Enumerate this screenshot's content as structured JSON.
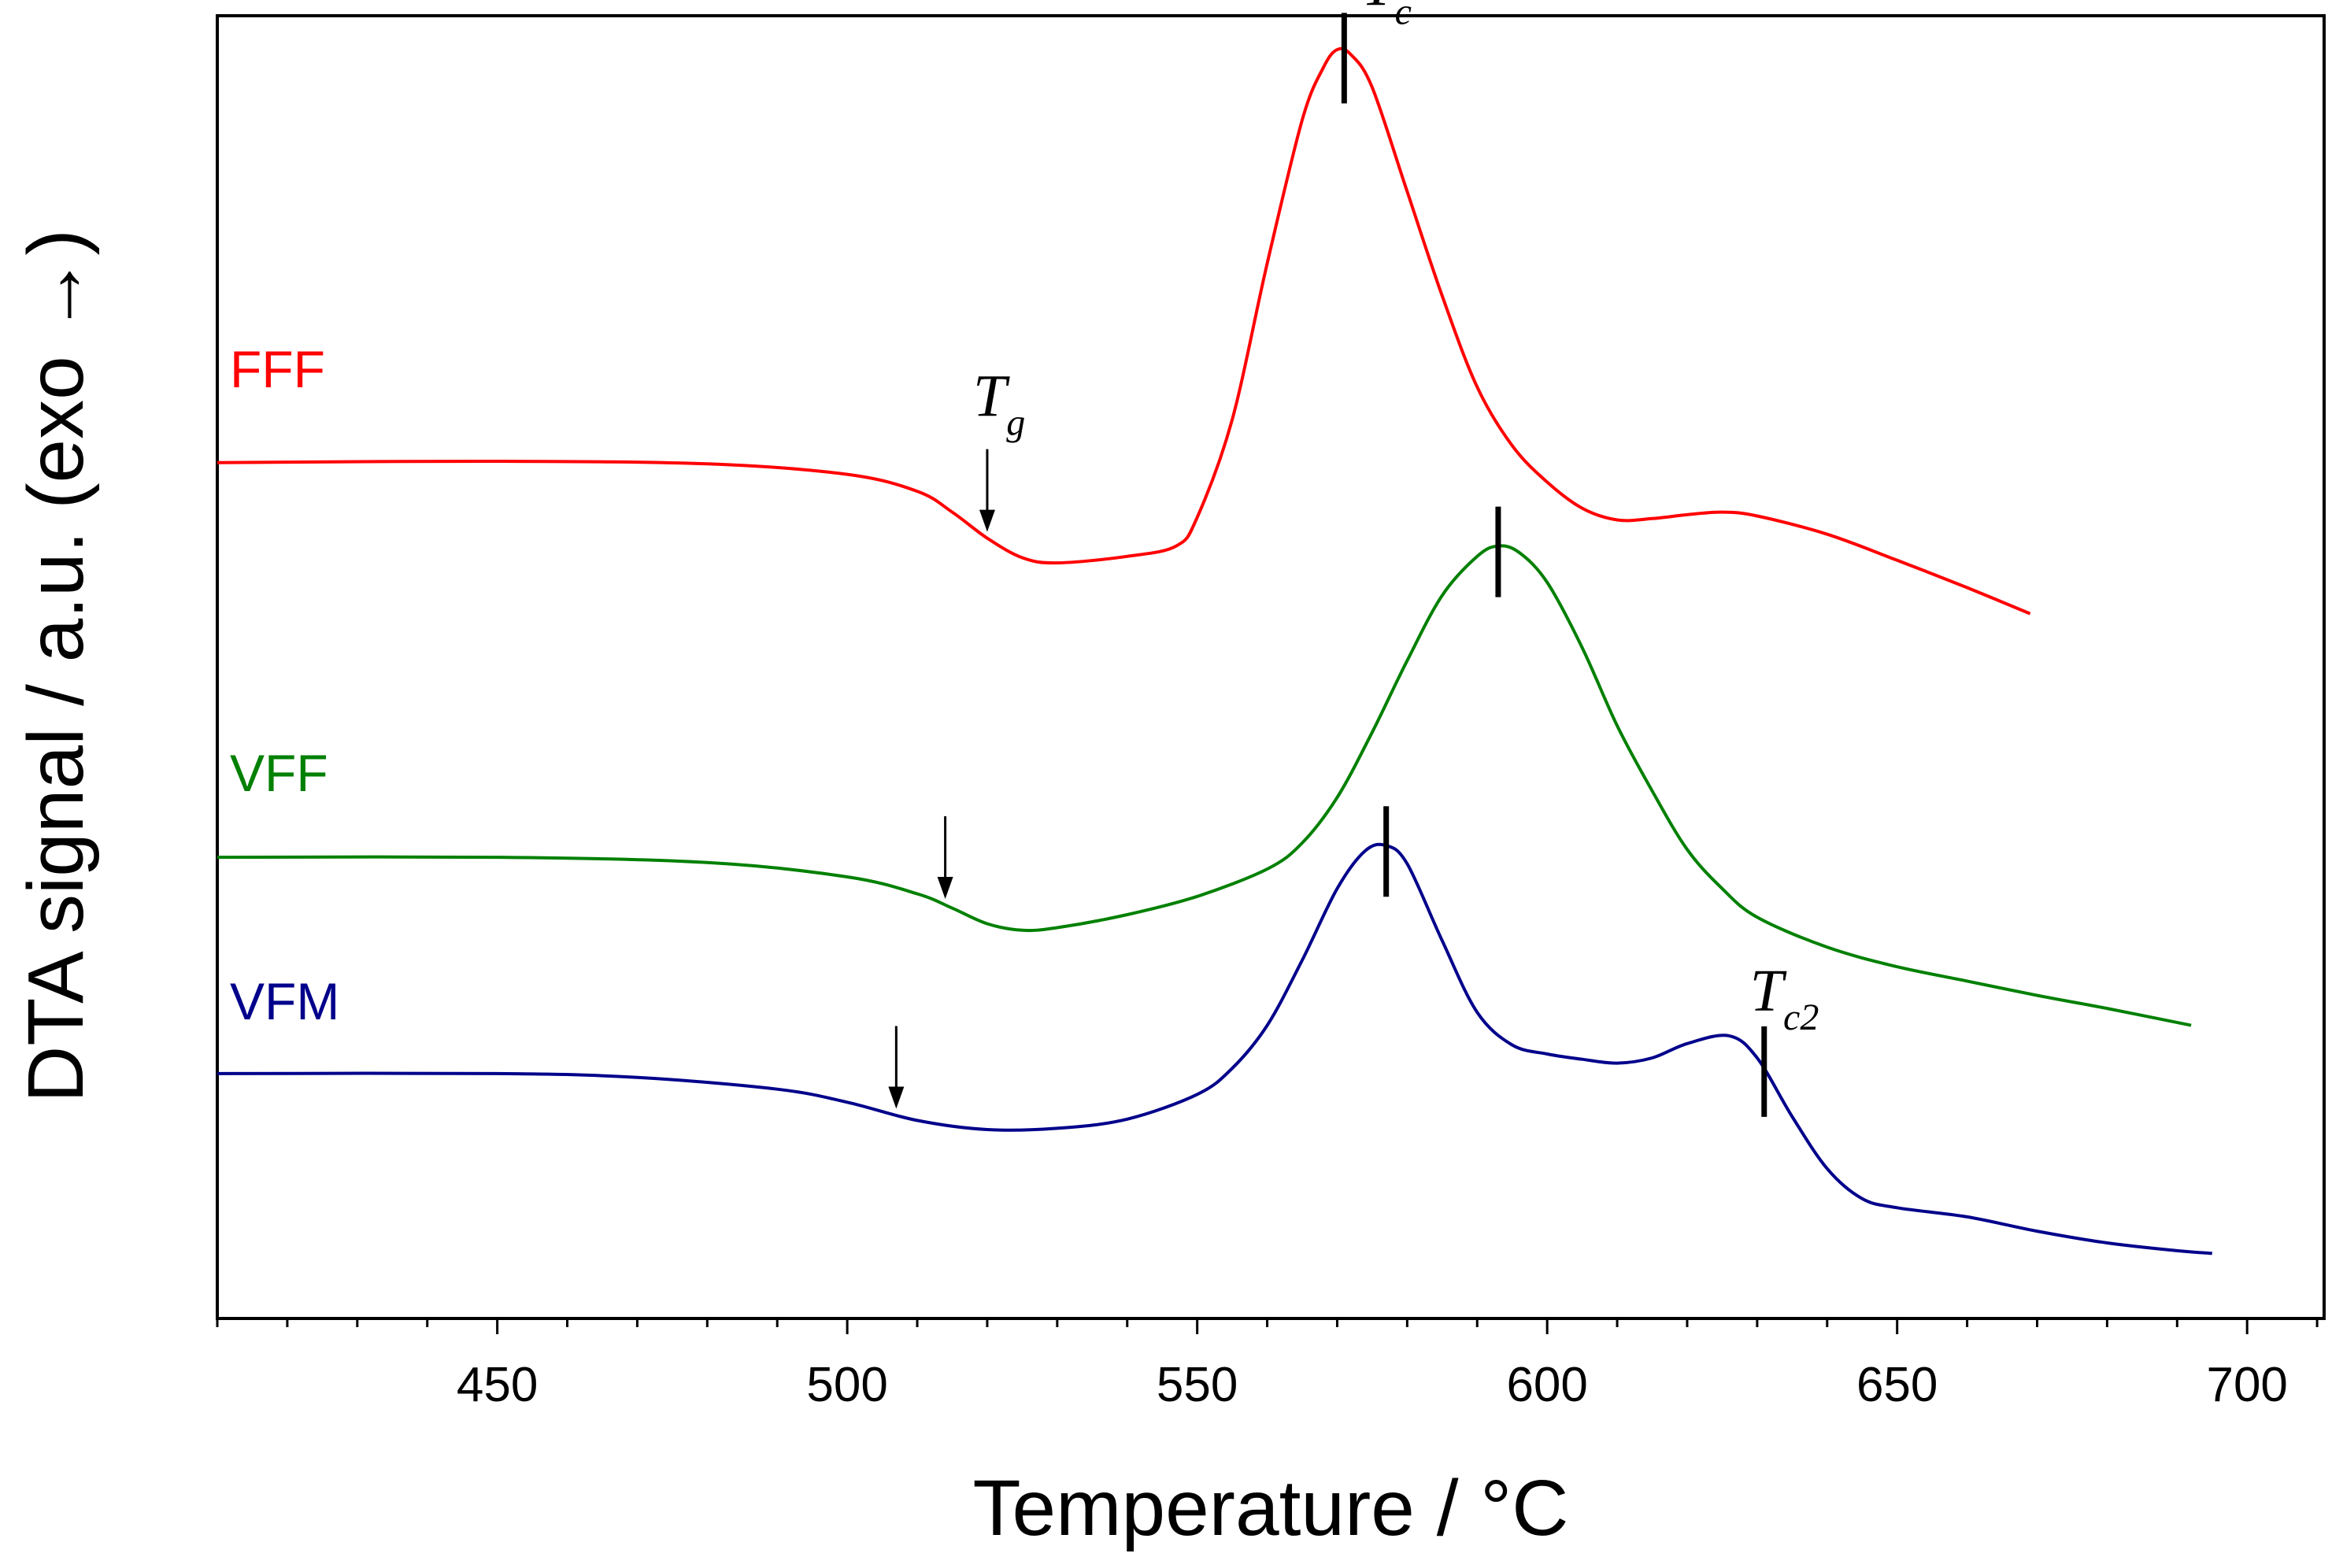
{
  "chart_data": {
    "type": "line",
    "title": "",
    "xlabel": "Temperature / °C",
    "ylabel": "DTA signal / a.u. (exo →)",
    "xlim": [
      410,
      711
    ],
    "ylim": [
      0,
      100
    ],
    "xticks": [
      450,
      500,
      550,
      600,
      650,
      700
    ],
    "xtick_labels": [
      "450",
      "500",
      "550",
      "600",
      "650",
      "700"
    ],
    "minor_tick_step": 10,
    "grid": false,
    "series": [
      {
        "name": "FFF",
        "color": "#ff0000",
        "points": [
          [
            410,
            65.7
          ],
          [
            450,
            65.8
          ],
          [
            480,
            65.6
          ],
          [
            500,
            64.8
          ],
          [
            510,
            63.5
          ],
          [
            515,
            61.9
          ],
          [
            520,
            59.9
          ],
          [
            525,
            58.4
          ],
          [
            530,
            58.0
          ],
          [
            540,
            58.5
          ],
          [
            547,
            59.3
          ],
          [
            550,
            61.5
          ],
          [
            555,
            69.0
          ],
          [
            560,
            81.0
          ],
          [
            565,
            92.0
          ],
          [
            568,
            96.0
          ],
          [
            570,
            97.4
          ],
          [
            572,
            97.0
          ],
          [
            575,
            94.5
          ],
          [
            580,
            86.5
          ],
          [
            585,
            78.5
          ],
          [
            590,
            71.5
          ],
          [
            595,
            67.0
          ],
          [
            600,
            64.2
          ],
          [
            605,
            62.2
          ],
          [
            610,
            61.3
          ],
          [
            615,
            61.4
          ],
          [
            620,
            61.7
          ],
          [
            625,
            61.9
          ],
          [
            630,
            61.6
          ],
          [
            640,
            60.2
          ],
          [
            650,
            58.2
          ],
          [
            660,
            56.1
          ],
          [
            669,
            54.1
          ]
        ],
        "Tg": 520,
        "Tc": 571
      },
      {
        "name": "VFF",
        "color": "#008000",
        "points": [
          [
            410,
            35.4
          ],
          [
            450,
            35.4
          ],
          [
            480,
            35.0
          ],
          [
            500,
            33.9
          ],
          [
            510,
            32.6
          ],
          [
            515,
            31.5
          ],
          [
            520,
            30.3
          ],
          [
            525,
            29.8
          ],
          [
            530,
            30.0
          ],
          [
            540,
            31.0
          ],
          [
            550,
            32.4
          ],
          [
            560,
            34.5
          ],
          [
            565,
            36.5
          ],
          [
            570,
            40.0
          ],
          [
            575,
            45.0
          ],
          [
            580,
            50.5
          ],
          [
            585,
            55.5
          ],
          [
            590,
            58.5
          ],
          [
            593,
            59.3
          ],
          [
            596,
            58.8
          ],
          [
            600,
            56.5
          ],
          [
            605,
            51.5
          ],
          [
            610,
            45.5
          ],
          [
            615,
            40.5
          ],
          [
            620,
            36.0
          ],
          [
            625,
            33.0
          ],
          [
            630,
            30.8
          ],
          [
            640,
            28.5
          ],
          [
            650,
            27.0
          ],
          [
            660,
            25.9
          ],
          [
            670,
            24.8
          ],
          [
            680,
            23.8
          ],
          [
            692,
            22.5
          ]
        ],
        "Tg": 514,
        "Tc": 593
      },
      {
        "name": "VFM",
        "color": "#00008b",
        "points": [
          [
            410,
            18.8
          ],
          [
            450,
            18.8
          ],
          [
            470,
            18.5
          ],
          [
            490,
            17.6
          ],
          [
            500,
            16.6
          ],
          [
            510,
            15.2
          ],
          [
            520,
            14.5
          ],
          [
            530,
            14.6
          ],
          [
            540,
            15.3
          ],
          [
            550,
            17.2
          ],
          [
            555,
            19.2
          ],
          [
            560,
            22.5
          ],
          [
            565,
            27.5
          ],
          [
            570,
            33.0
          ],
          [
            574,
            35.9
          ],
          [
            577,
            36.3
          ],
          [
            580,
            34.9
          ],
          [
            585,
            29.0
          ],
          [
            590,
            23.5
          ],
          [
            595,
            21.0
          ],
          [
            600,
            20.3
          ],
          [
            605,
            19.9
          ],
          [
            610,
            19.6
          ],
          [
            615,
            20.0
          ],
          [
            620,
            21.1
          ],
          [
            626,
            21.7
          ],
          [
            630,
            20.0
          ],
          [
            635,
            15.5
          ],
          [
            640,
            11.5
          ],
          [
            645,
            9.2
          ],
          [
            650,
            8.5
          ],
          [
            660,
            7.8
          ],
          [
            670,
            6.7
          ],
          [
            680,
            5.8
          ],
          [
            690,
            5.2
          ],
          [
            695,
            5.0
          ]
        ],
        "Tg": 507,
        "Tc": 577,
        "Tc2": 631
      }
    ],
    "annotations": {
      "Tc": {
        "main": "T",
        "sub": "c"
      },
      "Tg": {
        "main": "T",
        "sub": "g"
      },
      "Tc2": {
        "main": "T",
        "sub": "c2"
      }
    }
  }
}
